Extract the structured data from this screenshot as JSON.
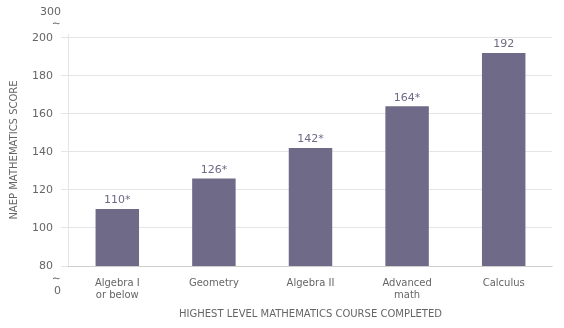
{
  "chart_data": {
    "type": "bar",
    "categories": [
      "Algebra I\nor below",
      "Geometry",
      "Algebra II",
      "Advanced\nmath",
      "Calculus"
    ],
    "values": [
      110,
      126,
      142,
      164,
      192
    ],
    "value_labels": [
      "110*",
      "126*",
      "142*",
      "164*",
      "192"
    ],
    "data_labels": true,
    "color": "#6e6a87",
    "xlabel": "HIGHEST LEVEL MATHEMATICS COURSE COMPLETED",
    "ylabel": "NAEP MATHEMATICS SCORE",
    "ylim": [
      80,
      202
    ],
    "yticks": [
      80,
      100,
      120,
      140,
      160,
      180,
      200
    ],
    "grid": true,
    "annotations": [
      {
        "text": "∼",
        "y": 80,
        "position": "below"
      },
      {
        "text": "0",
        "y": 80,
        "position": "below"
      },
      {
        "text": "∼",
        "y": 200,
        "position": "above"
      },
      {
        "text": "300",
        "y": 200,
        "position": "above"
      }
    ]
  }
}
